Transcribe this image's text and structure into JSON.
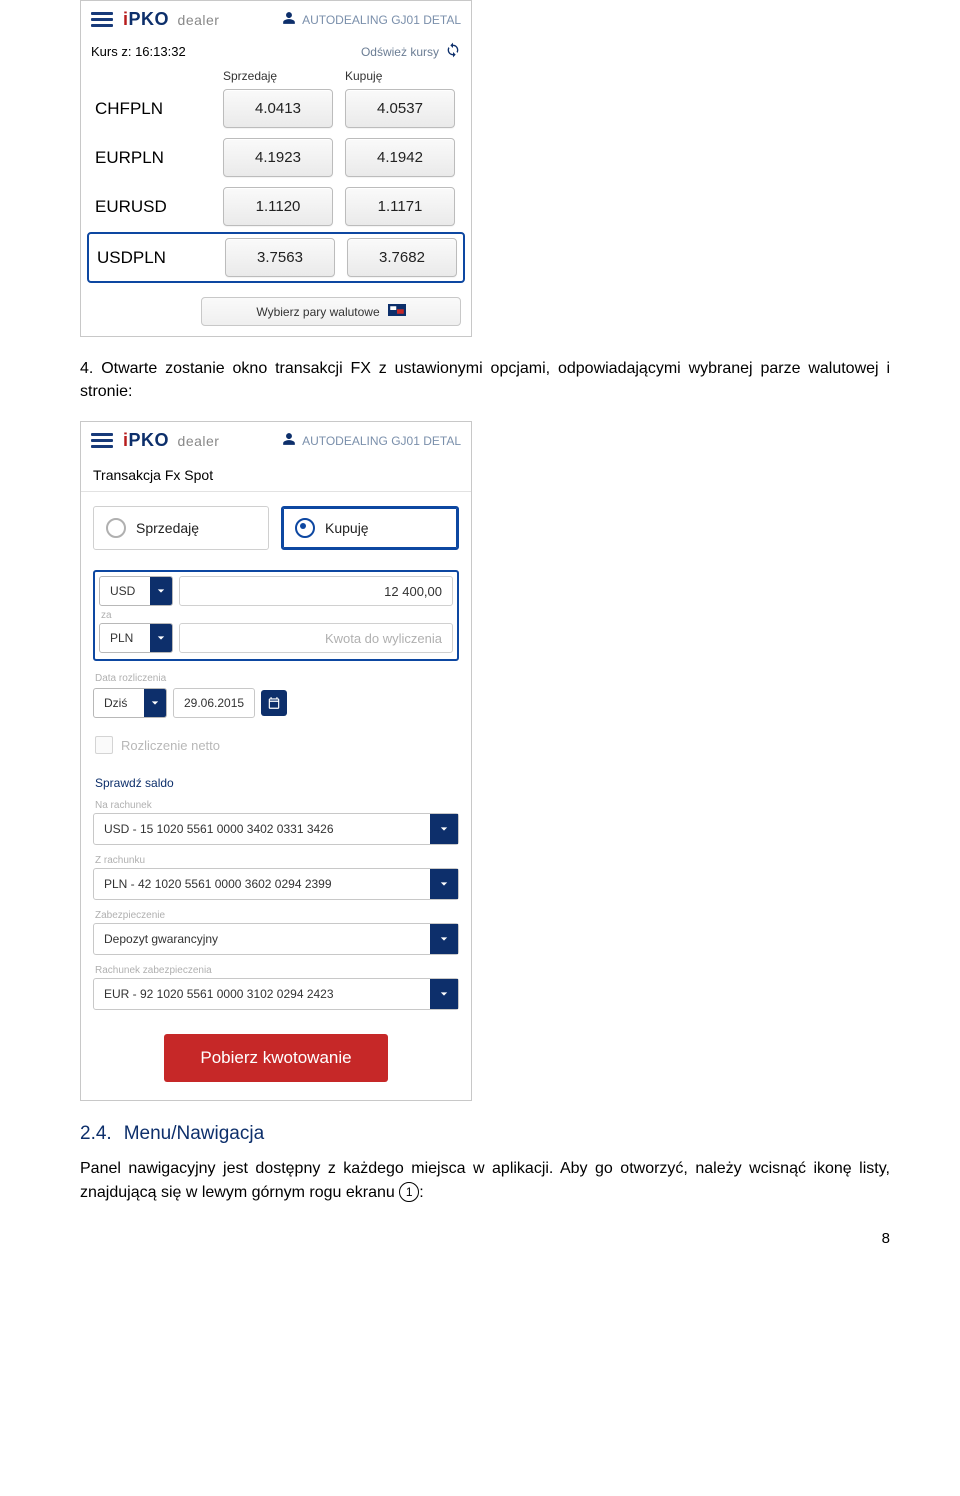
{
  "header": {
    "logo_i": "i",
    "logo_pko": "PKO",
    "logo_dealer": "dealer",
    "user_label": "AUTODEALING GJ01 DETAL"
  },
  "shot1": {
    "time_prefix": "Kurs z: ",
    "time_value": "16:13:32",
    "refresh_label": "Odśwież kursy",
    "col_sell": "Sprzedaję",
    "col_buy": "Kupuję",
    "rows": [
      {
        "pair": "CHFPLN",
        "sell": "4.0413",
        "buy": "4.0537",
        "highlight": false
      },
      {
        "pair": "EURPLN",
        "sell": "4.1923",
        "buy": "4.1942",
        "highlight": false
      },
      {
        "pair": "EURUSD",
        "sell": "1.1120",
        "buy": "1.1171",
        "highlight": false
      },
      {
        "pair": "USDPLN",
        "sell": "3.7563",
        "buy": "3.7682",
        "highlight": true
      }
    ],
    "pairs_btn": "Wybierz pary walutowe"
  },
  "doc": {
    "para1": "4.  Otwarte zostanie okno transakcji FX z ustawionymi opcjami, odpowiadającymi wybranej parze walutowej i stronie:",
    "heading_num": "2.4.",
    "heading_text": "Menu/Nawigacja",
    "para2_a": "Panel nawigacyjny jest dostępny z każdego miejsca w aplikacji. Aby go otworzyć, należy wcisnąć ikonę listy, znajdującą się w lewym górnym rogu ekranu ",
    "para2_b": ":",
    "circled": "1",
    "page_number": "8"
  },
  "shot2": {
    "title": "Transakcja Fx Spot",
    "radio_sell": "Sprzedaję",
    "radio_buy": "Kupuję",
    "ccy1": "USD",
    "amount1": "12 400,00",
    "za_label": "za",
    "ccy2": "PLN",
    "amount2_placeholder": "Kwota do wyliczenia",
    "date_caption": "Data rozliczenia",
    "date_quick": "Dziś",
    "date_value": "29.06.2015",
    "netto_label": "Rozliczenie netto",
    "check_balance": "Sprawdź saldo",
    "to_acc_label": "Na rachunek",
    "to_acc_value": "USD - 15 1020 5561 0000 3402 0331 3426",
    "from_acc_label": "Z rachunku",
    "from_acc_value": "PLN - 42 1020 5561 0000 3602 0294 2399",
    "collateral_label": "Zabezpieczenie",
    "collateral_value": "Depozyt gwarancyjny",
    "coll_acc_label": "Rachunek zabezpieczenia",
    "coll_acc_value": "EUR - 92 1020 5561 0000 3102 0294 2423",
    "quote_btn": "Pobierz kwotowanie"
  }
}
